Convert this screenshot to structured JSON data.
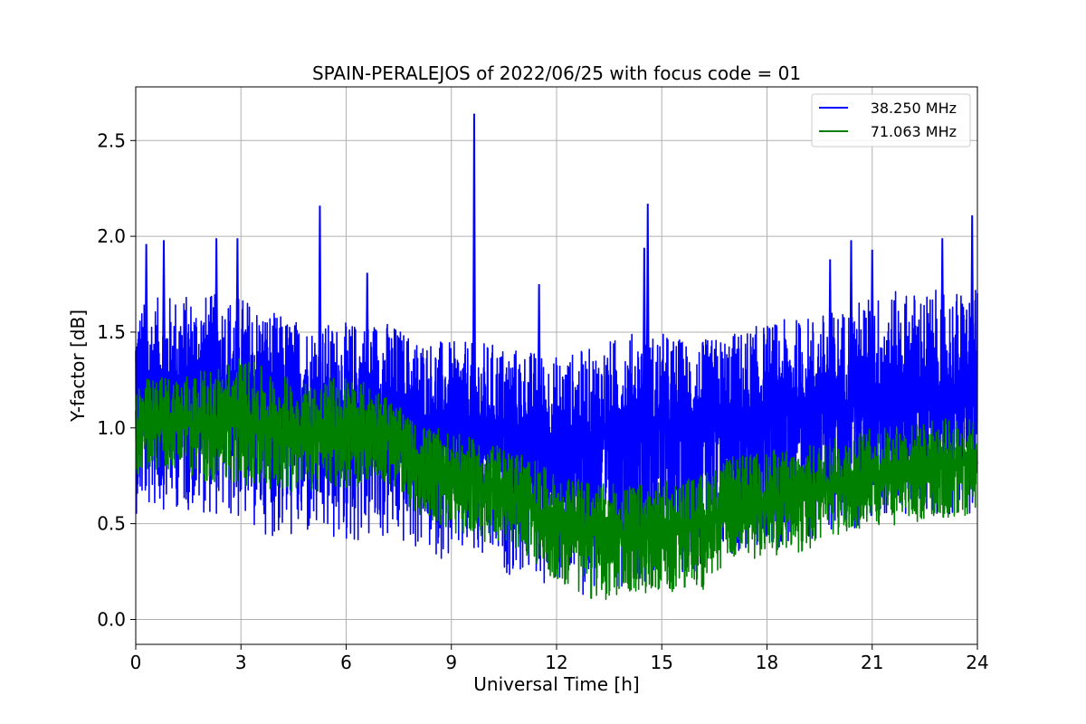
{
  "chart_data": {
    "type": "line",
    "title": "SPAIN-PERALEJOS of 2022/06/25 with focus code = 01",
    "xlabel": "Universal Time [h]",
    "ylabel": "Y-factor [dB]",
    "xlim": [
      0,
      24
    ],
    "ylim": [
      -0.13,
      2.78
    ],
    "xticks": [
      0,
      3,
      6,
      9,
      12,
      15,
      18,
      21,
      24
    ],
    "xtick_labels": [
      "0",
      "3",
      "6",
      "9",
      "12",
      "15",
      "18",
      "21",
      "24"
    ],
    "yticks": [
      0.0,
      0.5,
      1.0,
      1.5,
      2.0,
      2.5
    ],
    "ytick_labels": [
      "0.0",
      "0.5",
      "1.0",
      "1.5",
      "2.0",
      "2.5"
    ],
    "grid": true,
    "legend_position": "top-right",
    "series": [
      {
        "name": "38.250 MHz",
        "color": "#0000ff",
        "x": [
          0.0,
          1.0,
          2.0,
          3.0,
          4.0,
          5.0,
          6.0,
          7.0,
          8.0,
          9.0,
          10.0,
          11.0,
          12.0,
          13.0,
          14.0,
          15.0,
          16.0,
          17.0,
          18.0,
          19.0,
          20.0,
          21.0,
          22.0,
          23.0,
          24.0
        ],
        "center": [
          1.15,
          1.2,
          1.2,
          1.2,
          1.12,
          1.1,
          1.08,
          1.1,
          1.05,
          1.02,
          1.0,
          0.98,
          0.92,
          0.95,
          1.0,
          1.02,
          1.0,
          1.05,
          1.08,
          1.1,
          1.12,
          1.18,
          1.2,
          1.2,
          1.22
        ],
        "upper": [
          1.65,
          1.7,
          1.7,
          1.7,
          1.6,
          1.55,
          1.55,
          1.58,
          1.48,
          1.45,
          1.45,
          1.42,
          1.38,
          1.42,
          1.5,
          1.5,
          1.45,
          1.5,
          1.55,
          1.58,
          1.62,
          1.7,
          1.72,
          1.72,
          1.72
        ],
        "lower": [
          0.55,
          0.58,
          0.55,
          0.5,
          0.42,
          0.4,
          0.38,
          0.4,
          0.35,
          0.3,
          0.25,
          0.22,
          0.15,
          0.12,
          0.18,
          0.22,
          0.25,
          0.32,
          0.35,
          0.4,
          0.45,
          0.5,
          0.55,
          0.55,
          0.55
        ],
        "spikes": [
          [
            0.3,
            1.96
          ],
          [
            0.8,
            1.98
          ],
          [
            2.3,
            1.99
          ],
          [
            2.9,
            1.99
          ],
          [
            5.25,
            2.16
          ],
          [
            6.6,
            1.81
          ],
          [
            9.65,
            2.64
          ],
          [
            11.5,
            1.75
          ],
          [
            14.5,
            1.94
          ],
          [
            14.6,
            2.17
          ],
          [
            19.8,
            1.88
          ],
          [
            20.4,
            1.98
          ],
          [
            21.0,
            1.93
          ],
          [
            23.0,
            1.99
          ],
          [
            23.85,
            2.11
          ]
        ]
      },
      {
        "name": "71.063 MHz",
        "color": "#008000",
        "x": [
          0.0,
          1.0,
          2.0,
          3.0,
          4.0,
          5.0,
          6.0,
          7.0,
          8.0,
          9.0,
          10.0,
          11.0,
          12.0,
          13.0,
          14.0,
          15.0,
          16.0,
          17.0,
          18.0,
          19.0,
          20.0,
          21.0,
          22.0,
          23.0,
          24.0
        ],
        "center": [
          1.0,
          1.02,
          1.02,
          1.05,
          0.98,
          0.95,
          0.98,
          1.0,
          0.8,
          0.75,
          0.68,
          0.62,
          0.5,
          0.45,
          0.45,
          0.48,
          0.5,
          0.58,
          0.62,
          0.65,
          0.7,
          0.75,
          0.78,
          0.8,
          0.82
        ],
        "upper": [
          1.25,
          1.28,
          1.3,
          1.38,
          1.28,
          1.25,
          1.28,
          1.2,
          1.02,
          0.98,
          0.92,
          0.88,
          0.75,
          0.72,
          0.7,
          0.72,
          0.75,
          0.85,
          0.88,
          0.9,
          0.95,
          1.0,
          1.02,
          1.05,
          1.05
        ],
        "lower": [
          0.75,
          0.78,
          0.72,
          0.7,
          0.68,
          0.65,
          0.68,
          0.72,
          0.55,
          0.45,
          0.4,
          0.35,
          0.2,
          0.1,
          0.1,
          0.15,
          0.12,
          0.3,
          0.32,
          0.35,
          0.42,
          0.48,
          0.5,
          0.52,
          0.55
        ]
      }
    ]
  }
}
